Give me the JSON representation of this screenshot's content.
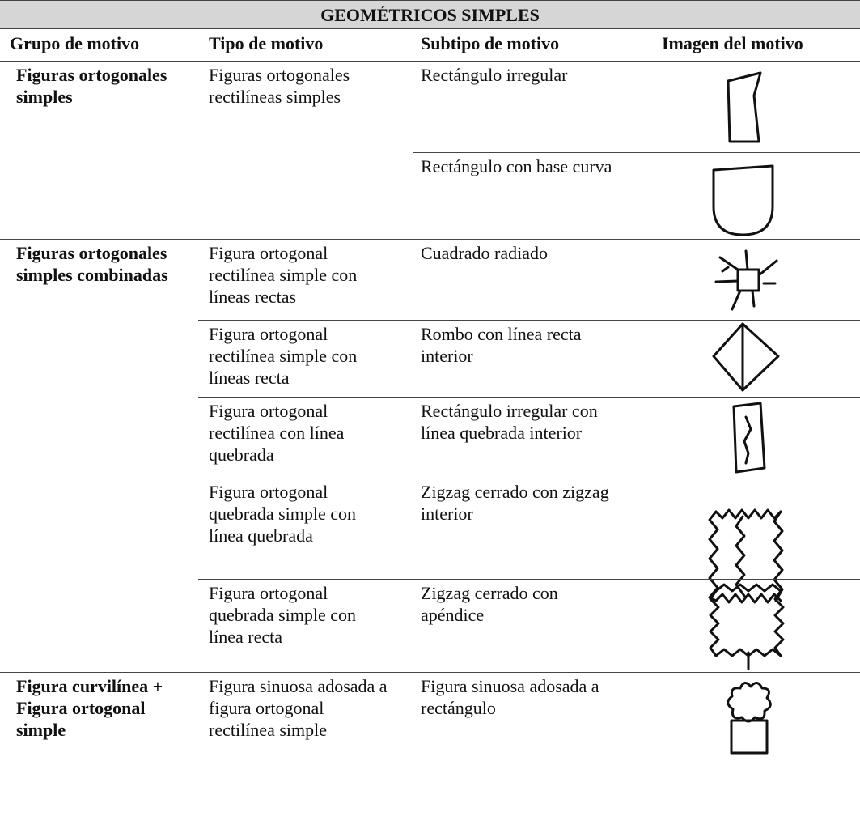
{
  "table": {
    "title": "GEOMÉTRICOS SIMPLES",
    "headers": [
      "Grupo de motivo",
      "Tipo de motivo",
      "Subtipo de motivo",
      "Imagen del motivo"
    ],
    "groups": [
      {
        "name": "Figuras ortogonales simples",
        "types": [
          {
            "name": "Figuras ortogonales rectilíneas simples",
            "subtypes": [
              "Rectángulo irregular",
              "Rectángulo con base curva"
            ]
          }
        ]
      },
      {
        "name": "Figuras ortogonales simples combinadas",
        "types": [
          {
            "name": "Figura ortogonal rectilínea simple con líneas rectas",
            "subtypes": [
              "Cuadrado radiado"
            ]
          },
          {
            "name": "Figura ortogonal rectilínea simple con líneas recta",
            "subtypes": [
              "Rombo con línea recta interior"
            ]
          },
          {
            "name": "Figura ortogonal rectilínea con línea quebrada",
            "subtypes": [
              "Rectángulo irregular con línea quebrada interior"
            ]
          },
          {
            "name": "Figura ortogonal quebrada simple con línea quebrada",
            "subtypes": [
              "Zigzag cerrado con zigzag interior"
            ]
          },
          {
            "name": "Figura ortogonal quebrada simple con línea recta",
            "subtypes": [
              "Zigzag cerrado con apéndice"
            ]
          }
        ]
      },
      {
        "name": "Figura curvilínea + Figura ortogonal simple",
        "types": [
          {
            "name": "Figura sinuosa adosada a figura ortogonal rectilínea simple",
            "subtypes": [
              "Figura sinuosa adosada a rectángulo"
            ]
          }
        ]
      }
    ]
  }
}
